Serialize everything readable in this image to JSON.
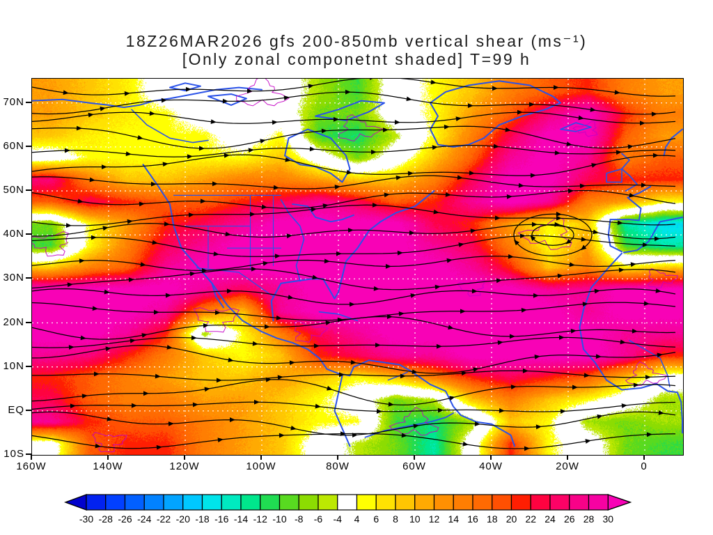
{
  "title": {
    "line1": "18Z26MAR2026 gfs 200-850mb vertical shear (ms⁻¹)",
    "line2": "[Only zonal componetnt shaded] T=99 h"
  },
  "chart_data": {
    "type": "heatmap",
    "field": "200-850mb vertical wind shear, zonal component shaded (m/s)",
    "title": "18Z26MAR2026 gfs 200-850mb vertical shear (ms⁻¹)",
    "subtitle": "[Only zonal componetnt shaded] T=99 h",
    "lon_domain": [
      -160,
      10
    ],
    "lat_domain": [
      -10.3,
      75.5
    ],
    "x_ticks": [
      {
        "label": "160W",
        "lon": -160
      },
      {
        "label": "140W",
        "lon": -140
      },
      {
        "label": "120W",
        "lon": -120
      },
      {
        "label": "100W",
        "lon": -100
      },
      {
        "label": "80W",
        "lon": -80
      },
      {
        "label": "60W",
        "lon": -60
      },
      {
        "label": "40W",
        "lon": -40
      },
      {
        "label": "20W",
        "lon": -20
      },
      {
        "label": "0",
        "lon": 0
      }
    ],
    "y_ticks": [
      {
        "label": "70N",
        "lat": 70
      },
      {
        "label": "60N",
        "lat": 60
      },
      {
        "label": "50N",
        "lat": 50
      },
      {
        "label": "40N",
        "lat": 40
      },
      {
        "label": "30N",
        "lat": 30
      },
      {
        "label": "20N",
        "lat": 20
      },
      {
        "label": "10N",
        "lat": 10
      },
      {
        "label": "EQ",
        "lat": 0
      },
      {
        "label": "10S",
        "lat": -10
      }
    ],
    "grid_lons": [
      -155,
      -145,
      -135,
      -125,
      -115,
      -105,
      -95,
      -85,
      -75,
      -65,
      -55,
      -45,
      -35,
      -25,
      -15,
      -5,
      5
    ],
    "grid_lats": [
      72.5,
      67.5,
      62.5,
      57.5,
      52.5,
      47.5,
      42.5,
      37.5,
      32.5,
      27.5,
      22.5,
      17.5,
      12.5,
      7.5,
      2.5,
      -2.5,
      -7.5
    ],
    "values": [
      [
        12,
        9,
        6,
        0,
        0,
        0,
        0,
        -6,
        -10,
        0,
        5,
        9,
        15,
        18,
        21,
        15,
        12
      ],
      [
        12,
        9,
        6,
        5,
        0,
        0,
        0,
        -8,
        -8,
        0,
        5,
        12,
        18,
        26,
        32,
        21,
        15
      ],
      [
        9,
        6,
        5,
        5,
        5,
        0,
        5,
        -10,
        -12,
        -5,
        5,
        15,
        24,
        32,
        32,
        18,
        12
      ],
      [
        0,
        5,
        5,
        5,
        5,
        5,
        9,
        0,
        -8,
        0,
        9,
        18,
        28,
        32,
        28,
        15,
        18
      ],
      [
        26,
        15,
        9,
        9,
        12,
        15,
        15,
        12,
        9,
        9,
        15,
        24,
        32,
        32,
        24,
        21,
        21
      ],
      [
        18,
        24,
        21,
        18,
        18,
        21,
        24,
        28,
        24,
        18,
        21,
        28,
        32,
        28,
        15,
        12,
        5
      ],
      [
        -8,
        5,
        12,
        21,
        24,
        28,
        32,
        32,
        32,
        32,
        24,
        21,
        12,
        5,
        9,
        -14,
        -18
      ],
      [
        -10,
        5,
        15,
        24,
        28,
        32,
        32,
        32,
        32,
        32,
        28,
        24,
        15,
        5,
        12,
        -10,
        -14
      ],
      [
        9,
        15,
        18,
        28,
        32,
        32,
        32,
        32,
        32,
        32,
        32,
        28,
        21,
        9,
        15,
        6,
        9
      ],
      [
        32,
        32,
        32,
        32,
        28,
        24,
        28,
        32,
        32,
        32,
        32,
        32,
        32,
        28,
        28,
        32,
        32
      ],
      [
        32,
        32,
        32,
        28,
        15,
        9,
        28,
        32,
        32,
        32,
        32,
        32,
        32,
        32,
        28,
        32,
        32
      ],
      [
        32,
        32,
        28,
        21,
        -6,
        5,
        15,
        24,
        28,
        32,
        32,
        32,
        32,
        32,
        32,
        28,
        28
      ],
      [
        28,
        26,
        21,
        15,
        9,
        5,
        9,
        21,
        24,
        28,
        28,
        32,
        32,
        32,
        32,
        28,
        21
      ],
      [
        21,
        18,
        15,
        12,
        9,
        9,
        12,
        9,
        5,
        9,
        15,
        21,
        24,
        21,
        18,
        9,
        0
      ],
      [
        24,
        18,
        15,
        15,
        12,
        12,
        9,
        5,
        0,
        -8,
        -5,
        9,
        15,
        9,
        5,
        0,
        -6
      ],
      [
        28,
        21,
        18,
        18,
        15,
        12,
        9,
        5,
        5,
        -10,
        -12,
        -6,
        9,
        5,
        -6,
        -8,
        -6
      ],
      [
        0,
        18,
        21,
        21,
        15,
        12,
        9,
        0,
        -5,
        -8,
        -14,
        0,
        21,
        5,
        0,
        -8,
        -10
      ]
    ],
    "colorbar": {
      "levels": [
        -30,
        -28,
        -26,
        -24,
        -22,
        -20,
        -18,
        -16,
        -14,
        -12,
        -10,
        -8,
        -6,
        -4,
        4,
        6,
        8,
        10,
        12,
        14,
        16,
        18,
        20,
        22,
        24,
        26,
        28,
        30
      ],
      "labels": [
        "-30",
        "-28",
        "-26",
        "-24",
        "-22",
        "-20",
        "-18",
        "-16",
        "-14",
        "-12",
        "-10",
        "-8",
        "-6",
        "-4",
        "4",
        "6",
        "8",
        "10",
        "12",
        "14",
        "16",
        "18",
        "20",
        "22",
        "24",
        "26",
        "28",
        "30"
      ],
      "colors": [
        "#0202cd",
        "#0222f0",
        "#0240ff",
        "#0260ff",
        "#0282ff",
        "#02a4ff",
        "#00c8ff",
        "#00e4ea",
        "#00eac0",
        "#00e68c",
        "#20dc52",
        "#58da20",
        "#8cdc02",
        "#bce802",
        "#ffffff",
        "#ffff02",
        "#ffe202",
        "#ffc602",
        "#ffaa02",
        "#ff9002",
        "#ff7e02",
        "#ff6a02",
        "#ff5002",
        "#ff1e02",
        "#ff0240",
        "#fc0266",
        "#f80288",
        "#f602a2",
        "#f802b6"
      ]
    },
    "overlays": {
      "streamlines": "black streamlines with arrowheads showing shear vector flow",
      "coastlines": "blue coastlines, rivers and borders",
      "thin_contours": "thin magenta contour squiggles",
      "graticule": "white dotted lat/lon grid, 10° lat / 20° lon"
    }
  }
}
